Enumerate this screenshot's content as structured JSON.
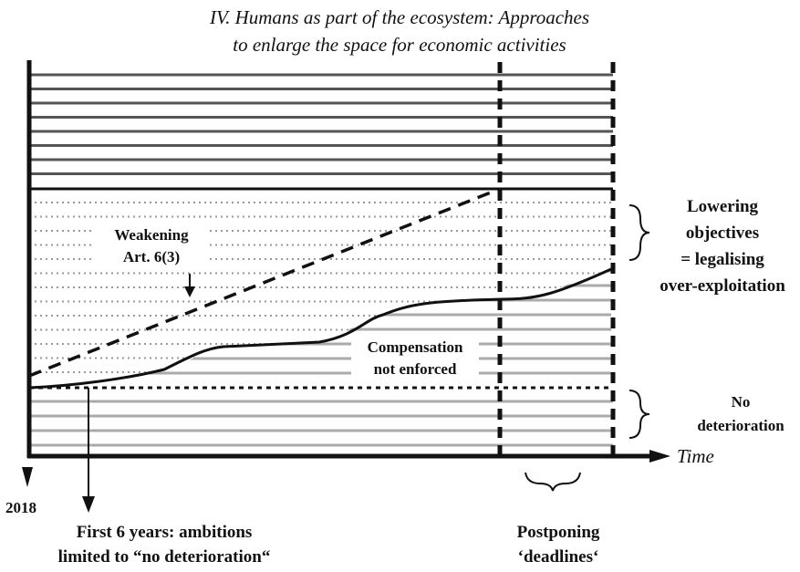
{
  "title": [
    "IV. Humans as part of the ecosystem: Approaches",
    "to enlarge the space for economic activities"
  ],
  "axis_label": "Time",
  "annotations": {
    "weakening": [
      "Weakening",
      "Art. 6(3)"
    ],
    "compensation": [
      "Compensation",
      "not enforced"
    ],
    "lowering": [
      "Lowering",
      "objectives",
      "= legalising",
      "over-exploitation"
    ],
    "no_deterioration": [
      "No",
      "deterioration"
    ],
    "start_year": "2018",
    "first_years": [
      "First 6 years: ambitions",
      "limited to “no deterioration“"
    ],
    "postponing": [
      "Postponing",
      "‘deadlines‘"
    ]
  }
}
